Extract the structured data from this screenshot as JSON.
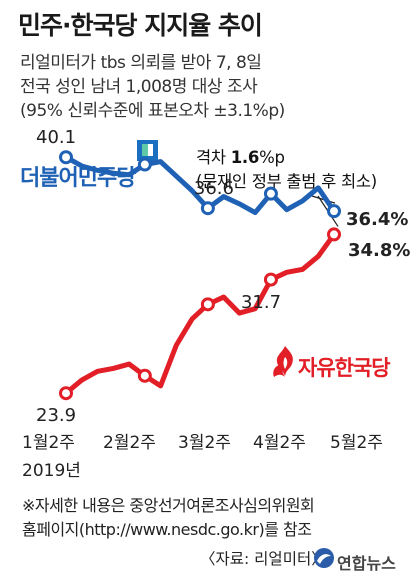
{
  "title": "민주·한국당 지지율 추이",
  "subtitle_lines": [
    "리얼미터가 tbs 의뢰를 받아 7, 8일",
    "전국 성인 남녀 1,008명 대상 조사",
    "(95% 신뢰수준에 표본오차 ±3.1%p)"
  ],
  "gap_annotation": {
    "prefix": "격차 ",
    "value": "1.6",
    "suffix": "%p",
    "line2": "(문재인 정부 출범 후 최소)"
  },
  "notes": [
    "※자세한 내용은 중앙선거여론조사심의위원회",
    "홈페이지(http://www.nesdc.go.kr)를 참조"
  ],
  "source": "〈자료: 리얼미터〉",
  "publisher": "연합뉴스",
  "year_label": "2019년",
  "colors": {
    "dem": "#1f62b5",
    "lkp": "#e21e26"
  },
  "chart_data": {
    "type": "line",
    "title": "민주·한국당 지지율 추이",
    "categories": [
      "1월2주",
      "2월2주",
      "3월2주",
      "4월2주",
      "5월2주"
    ],
    "x": [
      0,
      1,
      2,
      3,
      4,
      5,
      6,
      7,
      8,
      9,
      10,
      11,
      12,
      13,
      14,
      15,
      16,
      17
    ],
    "series": [
      {
        "name": "더불어민주당",
        "color": "#1f62b5",
        "values": [
          40.1,
          39.5,
          39.2,
          39.0,
          38.9,
          39.6,
          39.8,
          38.8,
          37.8,
          36.6,
          37.4,
          36.9,
          36.3,
          37.6,
          36.5,
          37.1,
          38.0,
          36.4
        ],
        "labels": {
          "0": "40.1",
          "9": "36.6",
          "17": "36.4%"
        }
      },
      {
        "name": "자유한국당",
        "color": "#e21e26",
        "values": [
          23.9,
          24.8,
          25.4,
          25.6,
          25.9,
          25.1,
          24.4,
          27.2,
          29.0,
          30.0,
          30.5,
          29.4,
          29.7,
          31.7,
          32.2,
          32.4,
          33.3,
          34.8
        ],
        "labels": {
          "0": "23.9",
          "13": "31.7",
          "17": "34.8%"
        }
      }
    ],
    "markers": [
      0,
      5,
      9,
      13,
      17
    ],
    "ylim": [
      20,
      43
    ]
  }
}
